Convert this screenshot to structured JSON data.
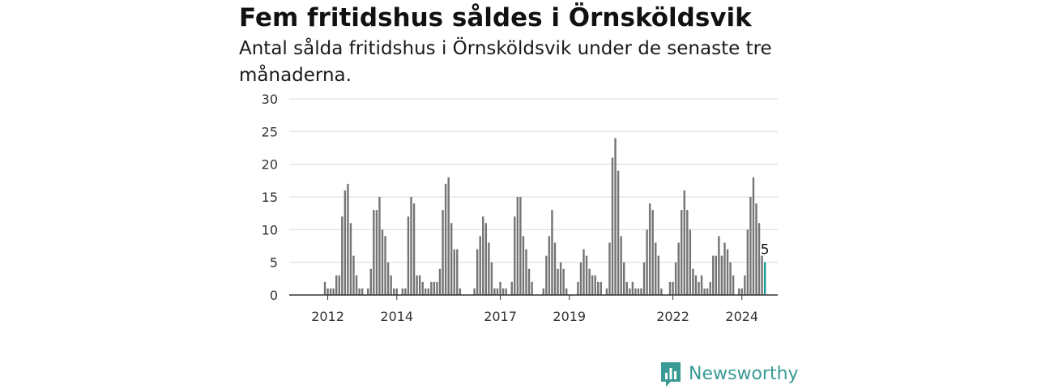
{
  "title": "Fem fritidshus såldes i Örnsköldsvik",
  "subtitle": "Antal sålda fritidshus i Örnsköldsvik under de senaste tre månaderna.",
  "brand": {
    "name": "Newsworthy",
    "icon": "bar-chart-speech-bubble-icon"
  },
  "colors": {
    "bar": "#747474",
    "highlight": "#1b9c98",
    "grid": "#d9d9d9",
    "axis": "#333333",
    "brand": "#3a9a96"
  },
  "chart_data": {
    "type": "bar",
    "x_start": "2011-04",
    "x_labels": [
      "2012",
      "2014",
      "2017",
      "2019",
      "2022",
      "2024"
    ],
    "yticks": [
      0,
      5,
      10,
      15,
      20,
      25,
      30
    ],
    "ylim": [
      0,
      30
    ],
    "grid": true,
    "values": [
      0,
      0,
      0,
      0,
      0,
      0,
      0,
      0,
      2,
      1,
      1,
      1,
      3,
      3,
      12,
      16,
      17,
      11,
      6,
      3,
      1,
      1,
      0,
      1,
      4,
      13,
      13,
      15,
      10,
      9,
      5,
      3,
      1,
      1,
      0,
      1,
      1,
      12,
      15,
      14,
      3,
      3,
      2,
      1,
      1,
      2,
      2,
      2,
      4,
      13,
      17,
      18,
      11,
      7,
      7,
      1,
      0,
      0,
      0,
      0,
      1,
      7,
      9,
      12,
      11,
      8,
      5,
      1,
      1,
      2,
      1,
      1,
      0,
      2,
      12,
      15,
      15,
      9,
      7,
      4,
      2,
      0,
      0,
      0,
      1,
      6,
      9,
      13,
      8,
      4,
      5,
      4,
      1,
      0,
      0,
      0,
      2,
      5,
      7,
      6,
      4,
      3,
      3,
      2,
      2,
      0,
      1,
      8,
      21,
      24,
      19,
      9,
      5,
      2,
      1,
      2,
      1,
      1,
      1,
      5,
      10,
      14,
      13,
      8,
      6,
      1,
      0,
      0,
      2,
      2,
      5,
      8,
      13,
      16,
      13,
      10,
      4,
      3,
      2,
      3,
      1,
      1,
      2,
      6,
      6,
      9,
      6,
      8,
      7,
      5,
      3,
      0,
      1,
      1,
      3,
      10,
      15,
      18,
      14,
      11,
      6,
      5
    ],
    "highlight_index": 161,
    "highlight_label": "5"
  }
}
